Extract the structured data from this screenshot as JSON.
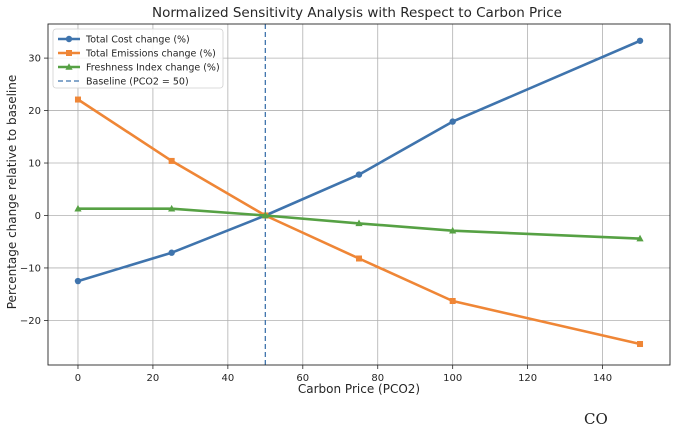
{
  "chart_data": {
    "type": "line",
    "title": "Normalized Sensitivity Analysis with Respect to Carbon Price",
    "xlabel": "Carbon Price (PCO2)",
    "ylabel": "Percentage change relative to baseline",
    "xlim": [
      -8,
      158
    ],
    "ylim": [
      -28.5,
      36.5
    ],
    "xticks": [
      0,
      20,
      40,
      60,
      80,
      100,
      120,
      140
    ],
    "yticks": [
      -20,
      -10,
      0,
      10,
      20,
      30
    ],
    "grid": true,
    "legend_position": "top-left",
    "series": [
      {
        "name": "Total Cost change (%)",
        "color": "#3f74ad",
        "marker": "circle",
        "x": [
          0,
          25,
          50,
          75,
          100,
          150
        ],
        "y": [
          -12.5,
          -7.1,
          0,
          7.8,
          17.9,
          33.3
        ]
      },
      {
        "name": "Total Emissions change (%)",
        "color": "#ef8636",
        "marker": "square",
        "x": [
          0,
          25,
          50,
          75,
          100,
          150
        ],
        "y": [
          22.1,
          10.4,
          0,
          -8.2,
          -16.3,
          -24.5
        ]
      },
      {
        "name": "Freshness Index change (%)",
        "color": "#56a144",
        "marker": "triangle",
        "x": [
          0,
          25,
          50,
          75,
          100,
          150
        ],
        "y": [
          1.3,
          1.3,
          0,
          -1.5,
          -2.9,
          -4.4
        ]
      }
    ],
    "baseline": {
      "name": "Baseline (PCO2 = 50)",
      "x": 50,
      "color": "#3f74ad",
      "style": "dashed"
    }
  },
  "corner_text": "CO"
}
